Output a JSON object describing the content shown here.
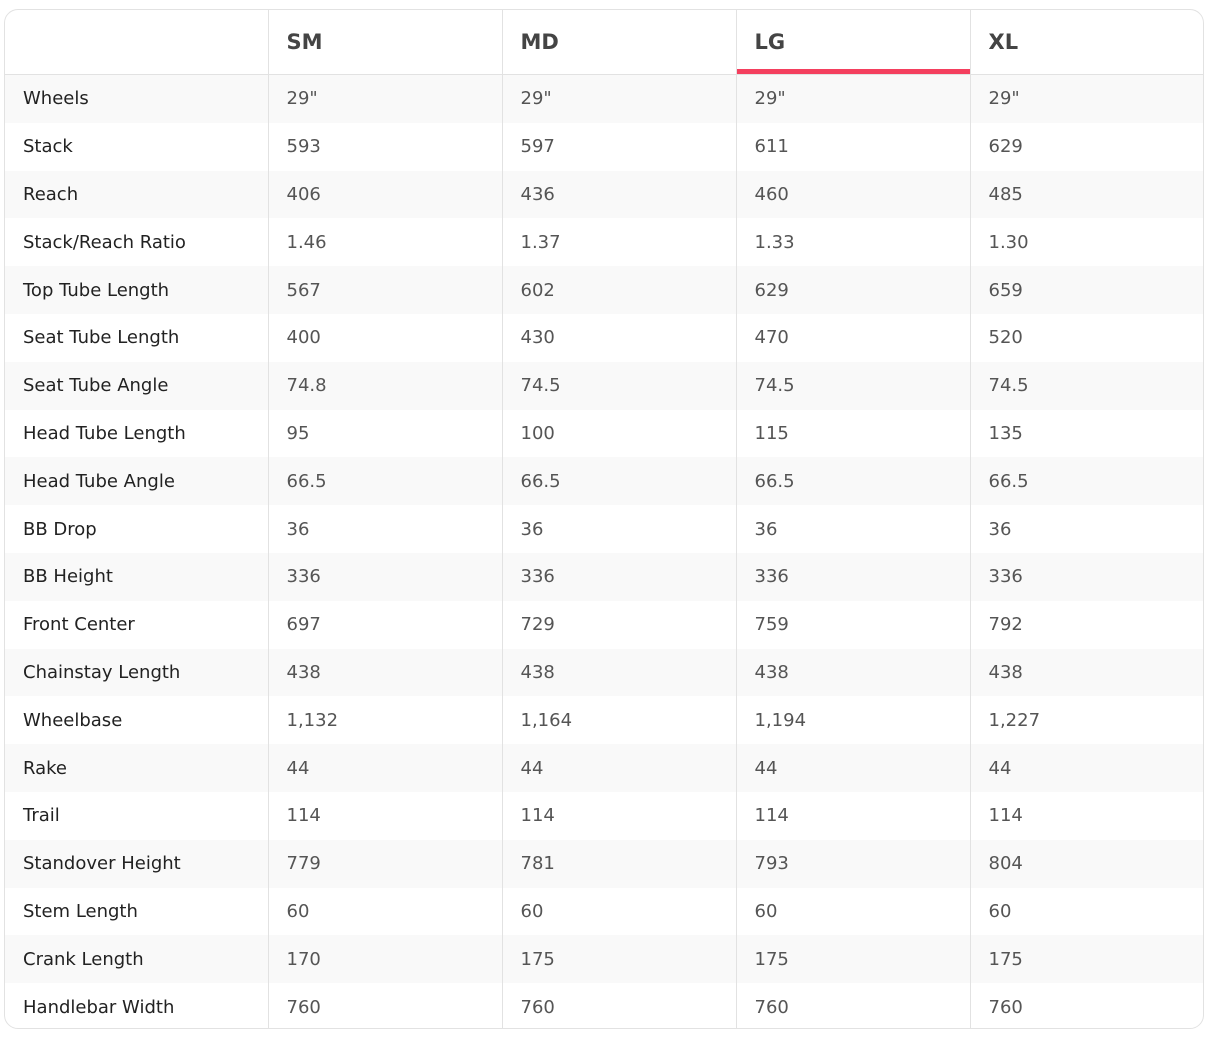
{
  "accent_color": "#f43f5e",
  "active_size": "LG",
  "columns": [
    "",
    "SM",
    "MD",
    "LG",
    "XL"
  ],
  "rows": [
    {
      "label": "Wheels",
      "values": [
        "29\"",
        "29\"",
        "29\"",
        "29\""
      ]
    },
    {
      "label": "Stack",
      "values": [
        "593",
        "597",
        "611",
        "629"
      ]
    },
    {
      "label": "Reach",
      "values": [
        "406",
        "436",
        "460",
        "485"
      ]
    },
    {
      "label": "Stack/Reach Ratio",
      "values": [
        "1.46",
        "1.37",
        "1.33",
        "1.30"
      ]
    },
    {
      "label": "Top Tube Length",
      "values": [
        "567",
        "602",
        "629",
        "659"
      ]
    },
    {
      "label": "Seat Tube Length",
      "values": [
        "400",
        "430",
        "470",
        "520"
      ]
    },
    {
      "label": "Seat Tube Angle",
      "values": [
        "74.8",
        "74.5",
        "74.5",
        "74.5"
      ]
    },
    {
      "label": "Head Tube Length",
      "values": [
        "95",
        "100",
        "115",
        "135"
      ]
    },
    {
      "label": "Head Tube Angle",
      "values": [
        "66.5",
        "66.5",
        "66.5",
        "66.5"
      ]
    },
    {
      "label": "BB Drop",
      "values": [
        "36",
        "36",
        "36",
        "36"
      ]
    },
    {
      "label": "BB Height",
      "values": [
        "336",
        "336",
        "336",
        "336"
      ]
    },
    {
      "label": "Front Center",
      "values": [
        "697",
        "729",
        "759",
        "792"
      ]
    },
    {
      "label": "Chainstay Length",
      "values": [
        "438",
        "438",
        "438",
        "438"
      ]
    },
    {
      "label": "Wheelbase",
      "values": [
        "1,132",
        "1,164",
        "1,194",
        "1,227"
      ]
    },
    {
      "label": "Rake",
      "values": [
        "44",
        "44",
        "44",
        "44"
      ]
    },
    {
      "label": "Trail",
      "values": [
        "114",
        "114",
        "114",
        "114"
      ]
    },
    {
      "label": "Standover Height",
      "values": [
        "779",
        "781",
        "793",
        "804"
      ]
    },
    {
      "label": "Stem Length",
      "values": [
        "60",
        "60",
        "60",
        "60"
      ]
    },
    {
      "label": "Crank Length",
      "values": [
        "170",
        "175",
        "175",
        "175"
      ]
    },
    {
      "label": "Handlebar Width",
      "values": [
        "760",
        "760",
        "760",
        "760"
      ]
    }
  ]
}
